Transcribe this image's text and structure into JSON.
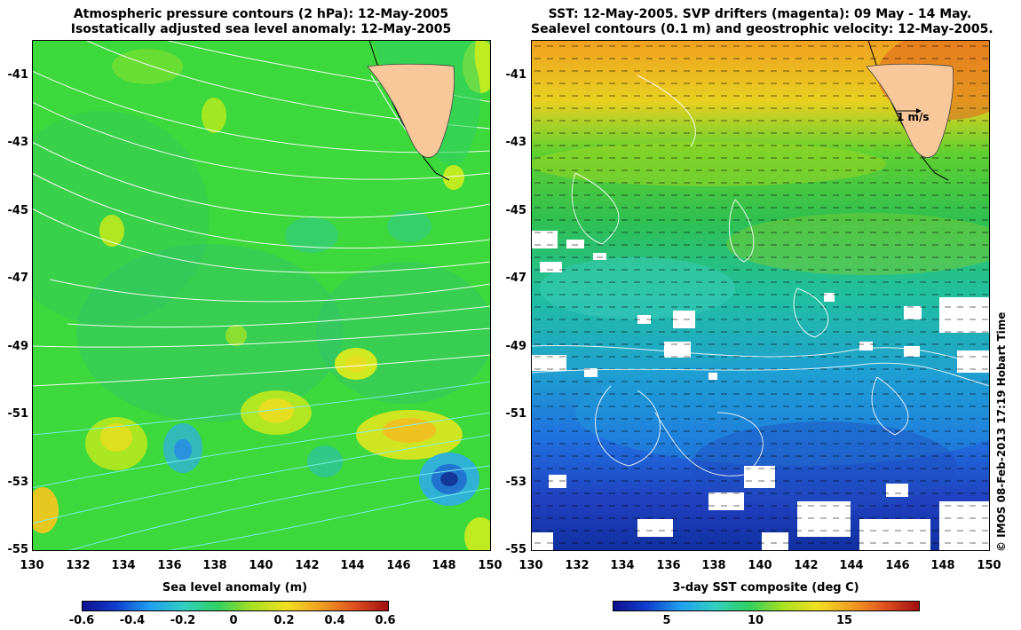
{
  "left_panel": {
    "title_line1": "Atmospheric pressure contours (2 hPa): 12-May-2005",
    "title_line2": "Isostatically adjusted sea level anomaly: 12-May-2005",
    "colorbar": {
      "label": "Sea level anomaly (m)",
      "ticks": [
        "-0.6",
        "-0.4",
        "-0.2",
        "0",
        "0.2",
        "0.4",
        "0.6"
      ]
    }
  },
  "right_panel": {
    "title_line1": "SST: 12-May-2005. SVP drifters (magenta): 09 May - 14 May.",
    "title_line2": "Sealevel contours (0.1 m) and geostrophic velocity: 12-May-2005.",
    "scale_arrow_label": "1 m/s",
    "colorbar": {
      "label": "3-day SST composite (deg C)",
      "ticks": [
        "5",
        "10",
        "15"
      ]
    }
  },
  "axes": {
    "lat_ticks": [
      "-41",
      "-43",
      "-45",
      "-47",
      "-49",
      "-51",
      "-53",
      "-55"
    ],
    "lon_ticks": [
      "130",
      "132",
      "134",
      "136",
      "138",
      "140",
      "142",
      "144",
      "146",
      "148",
      "150"
    ]
  },
  "credit": "© IMOS 08-Feb-2013 17:19 Hobart Time",
  "colors": {
    "land": "#f8c89a",
    "sla_base": "#3cd83c",
    "contour": "#ffffff"
  }
}
